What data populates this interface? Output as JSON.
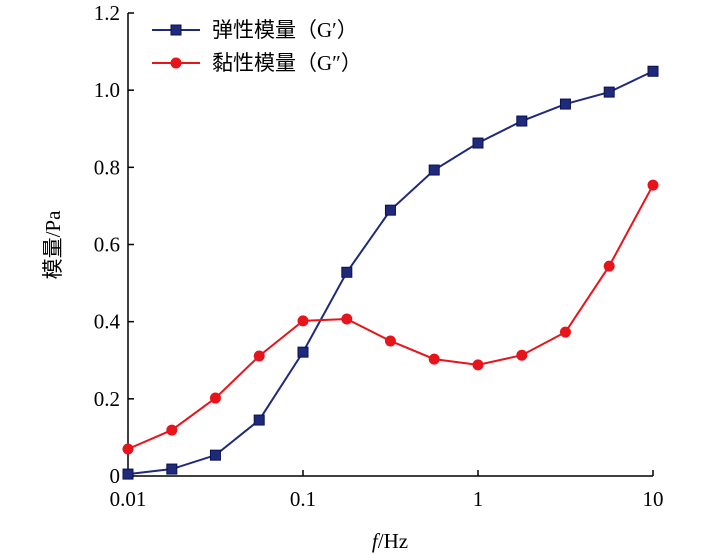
{
  "chart_data": {
    "type": "line",
    "xlabel_italic": "f",
    "xlabel_rest": "/Hz",
    "ylabel": "模量/Pa",
    "xscale": "log",
    "xlim": [
      0.01,
      10
    ],
    "ylim": [
      0,
      1.2
    ],
    "grid": false,
    "legend_placement": "top-left",
    "xticks": [
      0.01,
      0.1,
      1,
      10
    ],
    "xtick_labels": [
      "0.01",
      "0.1",
      "1",
      "10"
    ],
    "yticks": [
      0,
      0.2,
      0.4,
      0.6,
      0.8,
      1.0,
      1.2
    ],
    "ytick_labels": [
      "0",
      "0.2",
      "0.4",
      "0.6",
      "0.8",
      "1.0",
      "1.2"
    ],
    "x": [
      0.01,
      0.0178,
      0.0316,
      0.0562,
      0.1,
      0.178,
      0.316,
      0.562,
      1,
      1.78,
      3.16,
      5.62,
      10
    ],
    "series": [
      {
        "name": "弹性模量（G′）",
        "color": "#1f2a7a",
        "marker": "square",
        "values": [
          0.005,
          0.018,
          0.054,
          0.145,
          0.321,
          0.528,
          0.689,
          0.793,
          0.863,
          0.92,
          0.964,
          0.995,
          1.049
        ]
      },
      {
        "name": "黏性模量（G″）",
        "color": "#e8141b",
        "marker": "circle",
        "values": [
          0.07,
          0.119,
          0.202,
          0.311,
          0.402,
          0.407,
          0.35,
          0.303,
          0.288,
          0.313,
          0.373,
          0.544,
          0.754
        ]
      }
    ]
  }
}
